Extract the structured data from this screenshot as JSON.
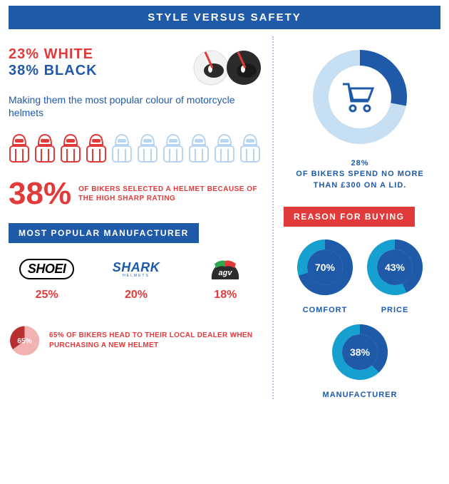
{
  "title": "STYLE VERSUS SAFETY",
  "colors": {
    "brand_blue": "#1e5aa8",
    "brand_red": "#e13a3a",
    "light_blue": "#b8d4f0",
    "dark": "#2b2b2b",
    "white": "#ffffff",
    "red_dark": "#b82f2f"
  },
  "helmet_colors": {
    "white_pct": "23% WHITE",
    "black_pct": "38% BLACK",
    "subtitle": "Making them the most popular colour of motorcycle helmets"
  },
  "riders": {
    "total": 10,
    "filled": 4
  },
  "sharp_stat": {
    "pct": "38%",
    "text": "OF BIKERS SELECTED A HELMET BECAUSE OF THE HIGH SHARP RATING"
  },
  "manufacturer": {
    "banner": "MOST POPULAR MANUFACTURER",
    "brands": [
      {
        "name": "SHOEI",
        "pct": "25%"
      },
      {
        "name": "SHARK",
        "sub": "HELMETS",
        "pct": "20%"
      },
      {
        "name": "agv",
        "pct": "18%"
      }
    ]
  },
  "dealer_stat": {
    "donut": {
      "value": 65,
      "bg": "#b82f2f",
      "fg": "#f3b2b2",
      "text_color": "#ffffff",
      "label": "65%"
    },
    "text": "65% OF BIKERS HEAD TO THEIR LOCAL DEALER WHEN PURCHASING A NEW HELMET"
  },
  "spend": {
    "donut": {
      "value": 28,
      "bg": "#c7dff2",
      "fg": "#1e5aa8"
    },
    "label": "28%\nOF BIKERS SPEND NO MORE THAN £300 ON A LID."
  },
  "reason": {
    "banner": "REASON FOR BUYING",
    "items": [
      {
        "label": "COMFORT",
        "pct": 70,
        "pct_label": "70%"
      },
      {
        "label": "PRICE",
        "pct": 43,
        "pct_label": "43%"
      },
      {
        "label": "MANUFACTURER",
        "pct": 38,
        "pct_label": "38%"
      }
    ],
    "donut_colors": {
      "bg": "#16a0d0",
      "fg": "#1e5aa8",
      "text": "#ffffff"
    }
  }
}
